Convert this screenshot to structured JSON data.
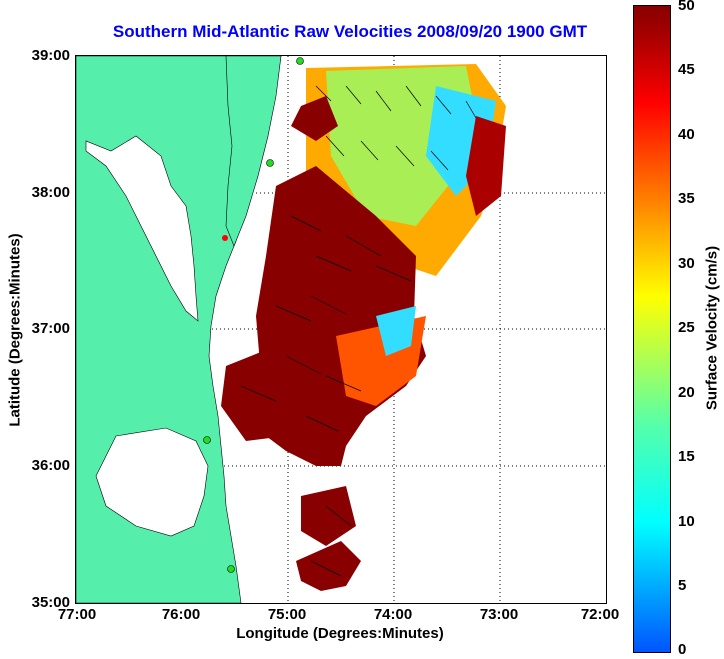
{
  "title": "Southern Mid-Atlantic Raw Velocities 2008/09/20 1900 GMT",
  "axes": {
    "xlabel": "Longitude (Degrees:Minutes)",
    "ylabel": "Latitude (Degrees:Minutes)",
    "xticks": [
      "77:00",
      "76:00",
      "75:00",
      "74:00",
      "73:00",
      "72:00"
    ],
    "yticks": [
      "39:00",
      "38:00",
      "37:00",
      "36:00",
      "35:00"
    ]
  },
  "colorbar": {
    "label": "Surface Velocity (cm/s)",
    "ticks": [
      "50",
      "45",
      "40",
      "35",
      "30",
      "25",
      "20",
      "15",
      "10",
      "5",
      "0"
    ]
  },
  "colors": {
    "land": "#55eeaa",
    "title": "#0000ff",
    "high_velocity": "#8b0000",
    "low_velocity": "#00ccff",
    "station_marker": "#22dd22"
  }
}
